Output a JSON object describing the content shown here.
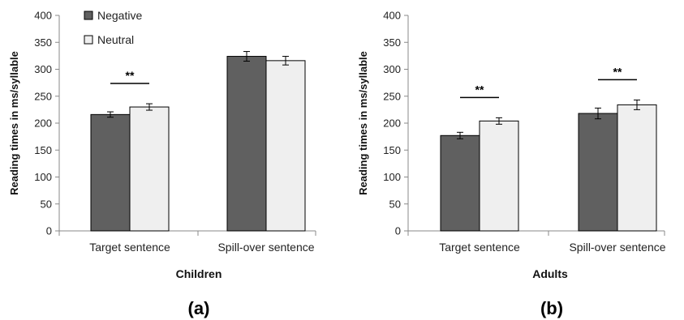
{
  "chart_data": [
    {
      "type": "bar",
      "panel_label": "(a)",
      "xlabel": "Children",
      "ylabel": "Reading times in ms/syllable",
      "ylim": [
        0,
        400
      ],
      "yticks": [
        0,
        50,
        100,
        150,
        200,
        250,
        300,
        350,
        400
      ],
      "categories": [
        "Target sentence",
        "Spill-over sentence"
      ],
      "series": [
        {
          "name": "Negative",
          "color": "#606060",
          "values": [
            216,
            324
          ],
          "errors": [
            5,
            9
          ]
        },
        {
          "name": "Neutral",
          "color": "#efefef",
          "values": [
            230,
            316
          ],
          "errors": [
            6,
            8
          ]
        }
      ],
      "significance": [
        {
          "category": "Target sentence",
          "label": "**"
        }
      ],
      "legend": "top-left",
      "grid": false
    },
    {
      "type": "bar",
      "panel_label": "(b)",
      "xlabel": "Adults",
      "ylabel": "Reading times in ms/syllable",
      "ylim": [
        0,
        400
      ],
      "yticks": [
        0,
        50,
        100,
        150,
        200,
        250,
        300,
        350,
        400
      ],
      "categories": [
        "Target sentence",
        "Spill-over sentence"
      ],
      "series": [
        {
          "name": "Negative",
          "color": "#606060",
          "values": [
            177,
            218
          ],
          "errors": [
            6,
            10
          ]
        },
        {
          "name": "Neutral",
          "color": "#efefef",
          "values": [
            204,
            234
          ],
          "errors": [
            6,
            9
          ]
        }
      ],
      "significance": [
        {
          "category": "Target sentence",
          "label": "**"
        },
        {
          "category": "Spill-over sentence",
          "label": "**"
        }
      ],
      "legend": "none",
      "grid": false
    }
  ]
}
